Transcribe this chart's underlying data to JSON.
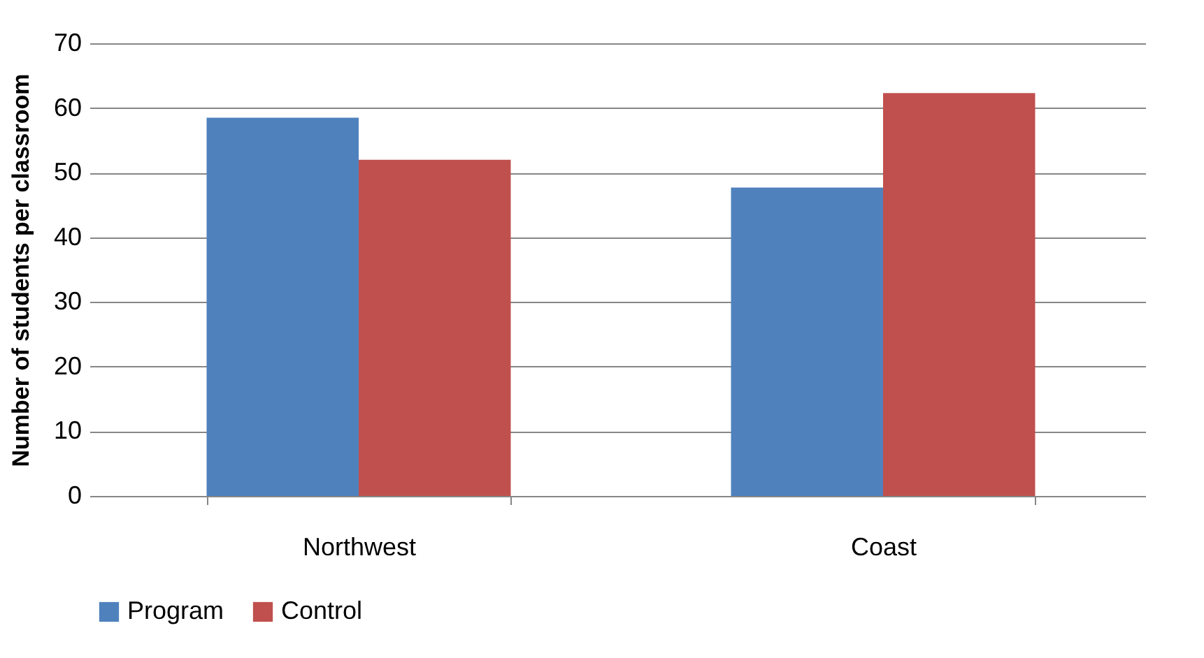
{
  "chart_data": {
    "type": "bar",
    "ylabel": "Number of students per classroom",
    "categories": [
      "Northwest",
      "Coast"
    ],
    "series": [
      {
        "name": "Program",
        "color": "#4f81bd",
        "values": [
          58.5,
          47.7
        ]
      },
      {
        "name": "Control",
        "color": "#c0504d",
        "values": [
          52,
          62.3
        ]
      }
    ],
    "ylim": [
      0,
      70
    ],
    "yticks": [
      0,
      10,
      20,
      30,
      40,
      50,
      60,
      70
    ],
    "grid": "y",
    "legend": "bottom"
  }
}
